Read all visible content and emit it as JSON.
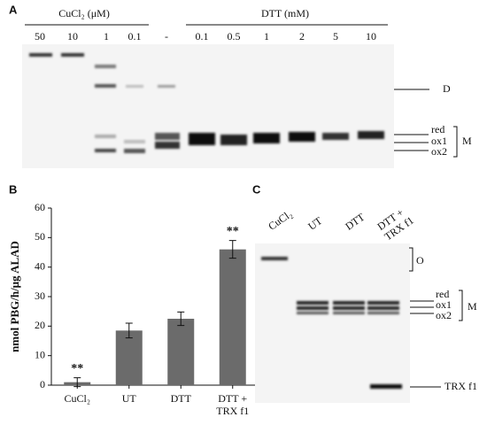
{
  "panel_a": {
    "label": "A",
    "cucl2_header": "CuCl₂ (μM)",
    "dtt_header": "DTT (mM)",
    "lanes": [
      "50",
      "10",
      "1",
      "0.1",
      "-",
      "0.1",
      "0.5",
      "1",
      "2",
      "5",
      "10"
    ],
    "dimer_label": "D",
    "band_labels": [
      "red",
      "ox1",
      "ox2"
    ],
    "monomer_label": "M"
  },
  "chart_data": {
    "type": "bar",
    "panel_label": "B",
    "y_label": "nmol PBG/h/μg ALAD",
    "categories": [
      "CuCl₂",
      "UT",
      "DTT",
      "DTT +\nTRX f1"
    ],
    "values": [
      1,
      18.5,
      22.5,
      46
    ],
    "errors": [
      1.5,
      2.5,
      2.3,
      3
    ],
    "value_annotations": [
      "**",
      null,
      null,
      "**"
    ],
    "color": "#6b6b6b",
    "ylim": [
      0,
      60
    ],
    "yticks": [
      0,
      10,
      20,
      30,
      40,
      50,
      60
    ]
  },
  "panel_c": {
    "label": "C",
    "lanes": [
      "CuCl₂",
      "UT",
      "DTT",
      "DTT +\nTRX f1"
    ],
    "oligomer_label": "O",
    "band_labels": [
      "red",
      "ox1",
      "ox2"
    ],
    "monomer_label": "M",
    "trx_label": "TRX f1"
  }
}
